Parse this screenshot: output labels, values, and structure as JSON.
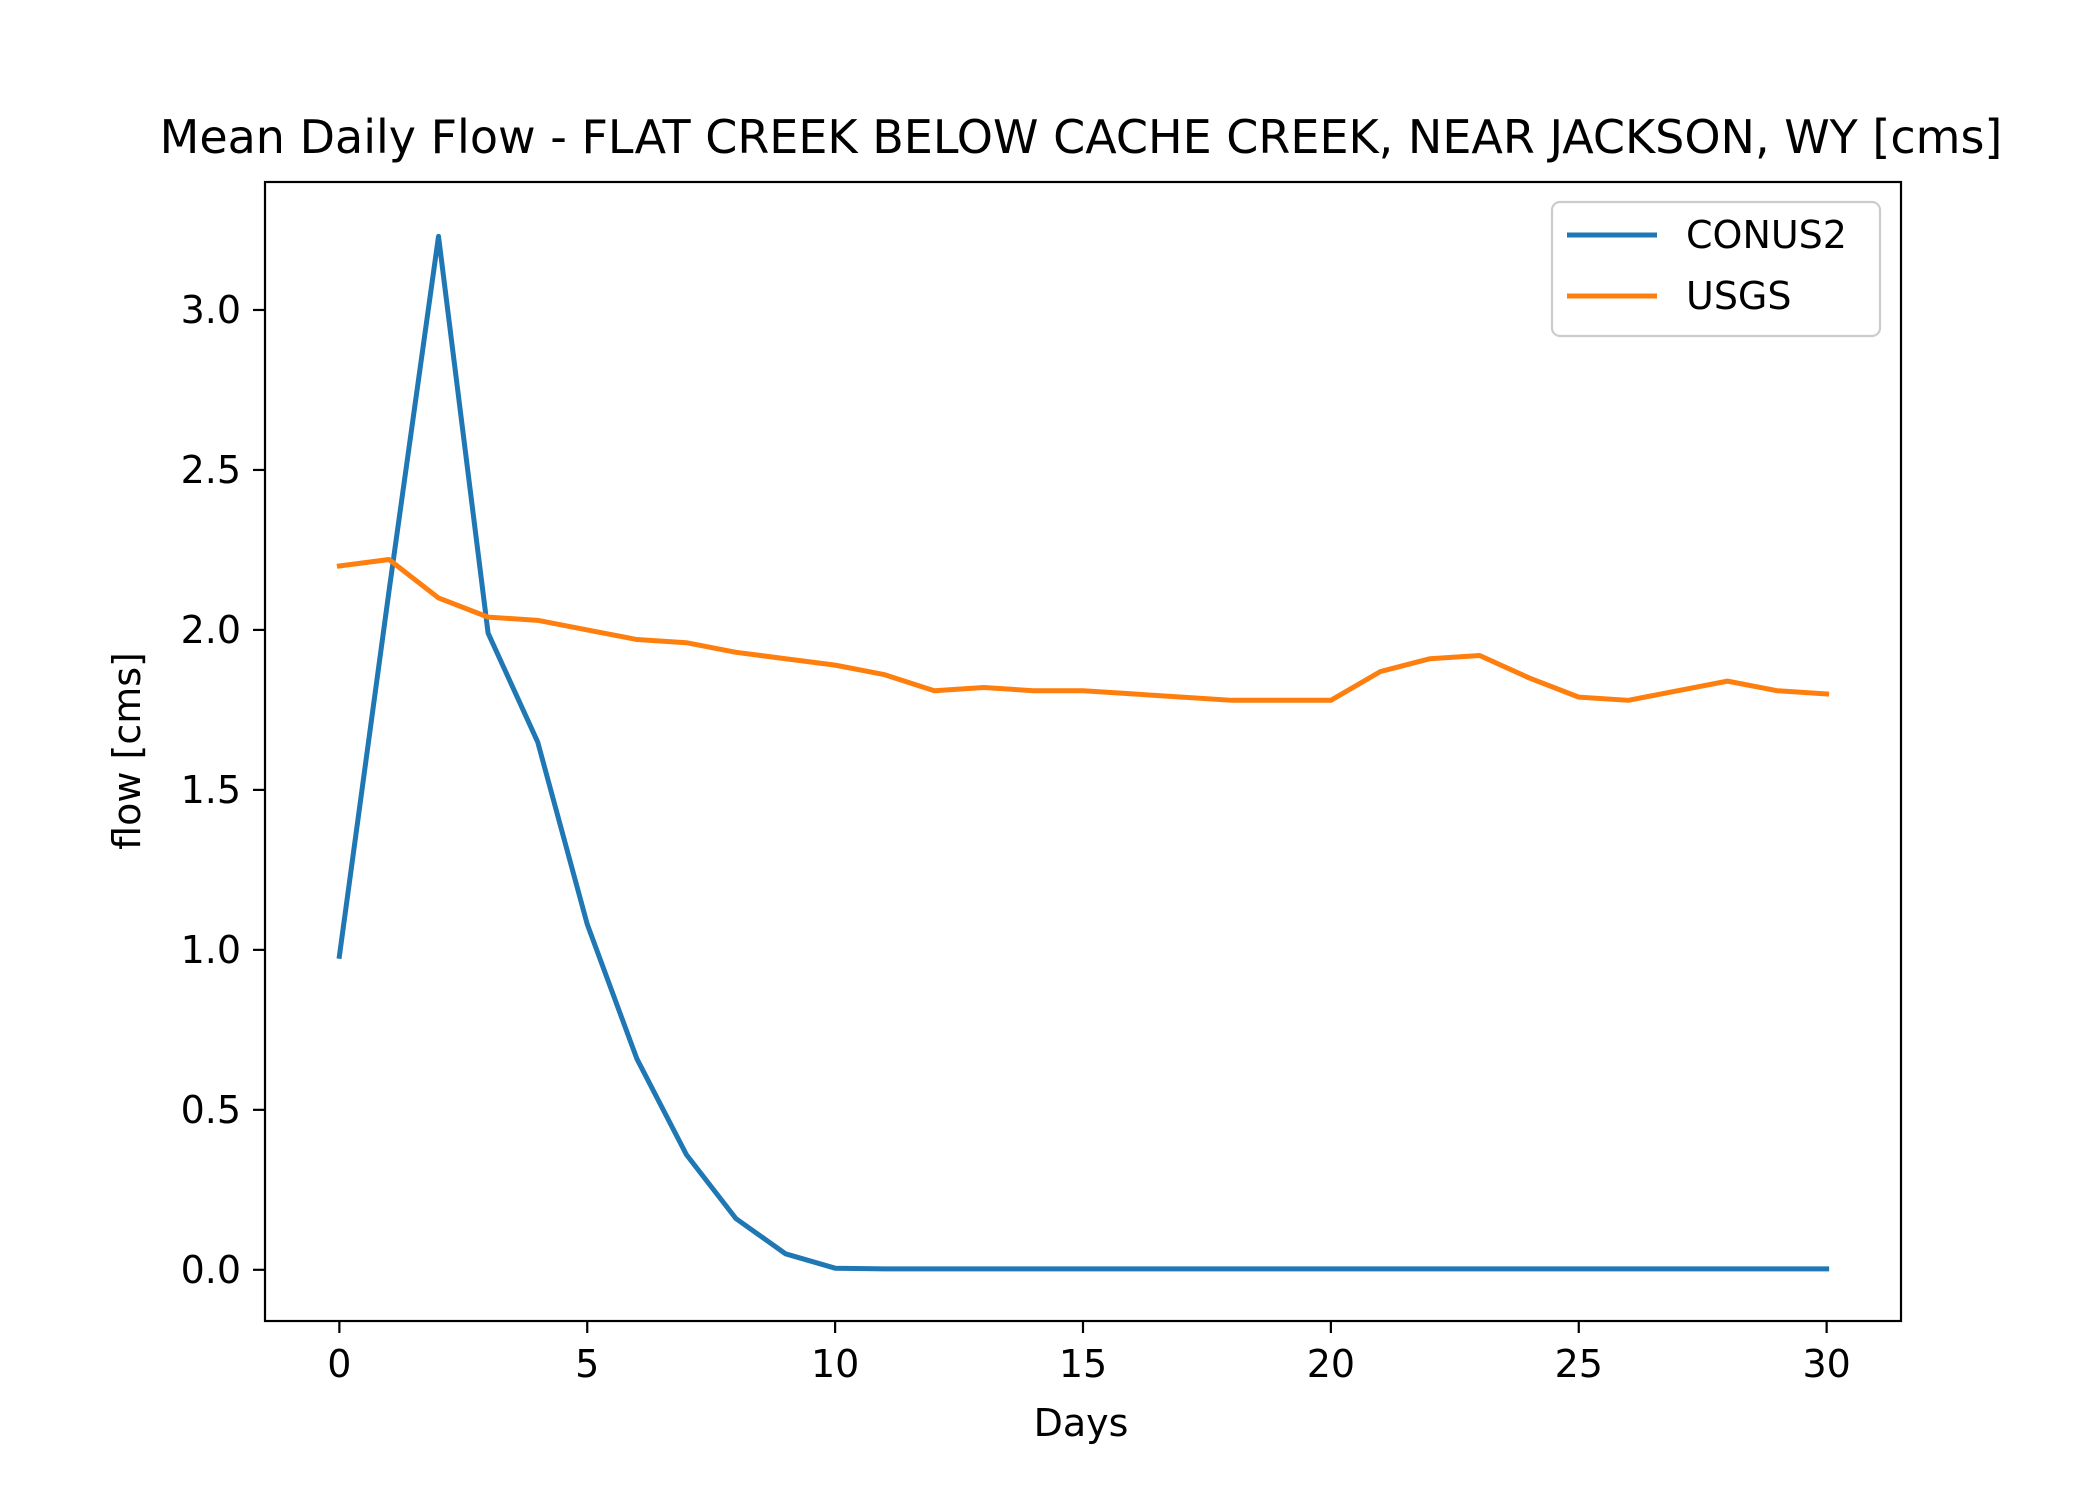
{
  "chart_data": {
    "type": "line",
    "title": "Mean Daily Flow - FLAT CREEK BELOW CACHE CREEK, NEAR JACKSON, WY [cms]",
    "xlabel": "Days",
    "ylabel": "flow [cms]",
    "xlim": [
      -1.5,
      31.5
    ],
    "ylim": [
      -0.16,
      3.4
    ],
    "xticks": [
      0,
      5,
      10,
      15,
      20,
      25,
      30
    ],
    "yticks": [
      0.0,
      0.5,
      1.0,
      1.5,
      2.0,
      2.5,
      3.0
    ],
    "ytick_labels": [
      "0.0",
      "0.5",
      "1.0",
      "1.5",
      "2.0",
      "2.5",
      "3.0"
    ],
    "grid": false,
    "legend": "top-right",
    "x": [
      0,
      1,
      2,
      3,
      4,
      5,
      6,
      7,
      8,
      9,
      10,
      11,
      12,
      13,
      14,
      15,
      16,
      17,
      18,
      19,
      20,
      21,
      22,
      23,
      24,
      25,
      26,
      27,
      28,
      29,
      30
    ],
    "series": [
      {
        "name": "CONUS2",
        "color": "#1f77b4",
        "values": [
          0.98,
          2.12,
          3.23,
          1.99,
          1.65,
          1.08,
          0.66,
          0.36,
          0.16,
          0.05,
          0.005,
          0.003,
          0.003,
          0.003,
          0.003,
          0.003,
          0.003,
          0.003,
          0.003,
          0.003,
          0.003,
          0.003,
          0.003,
          0.003,
          0.003,
          0.003,
          0.003,
          0.003,
          0.003,
          0.003,
          0.003
        ]
      },
      {
        "name": "USGS",
        "color": "#ff7f0e",
        "values": [
          2.2,
          2.22,
          2.1,
          2.04,
          2.03,
          2.0,
          1.97,
          1.96,
          1.93,
          1.91,
          1.89,
          1.86,
          1.81,
          1.82,
          1.81,
          1.81,
          1.8,
          1.79,
          1.78,
          1.78,
          1.78,
          1.87,
          1.91,
          1.92,
          1.85,
          1.79,
          1.78,
          1.81,
          1.84,
          1.81,
          1.8
        ]
      }
    ]
  }
}
